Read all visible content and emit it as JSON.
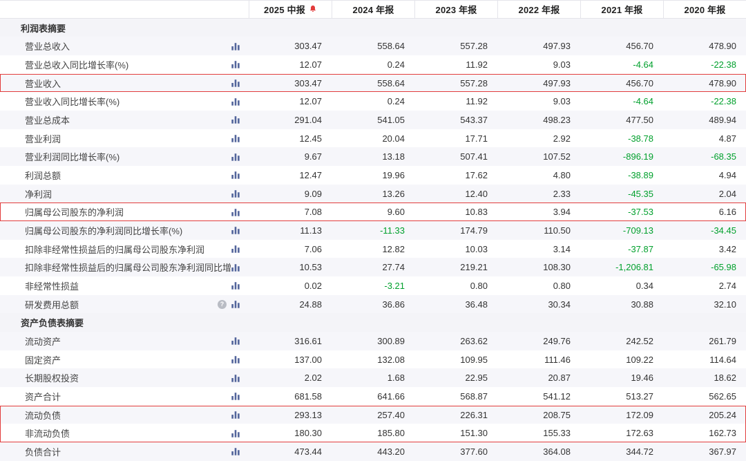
{
  "colors": {
    "negative_value": "#00a02c",
    "highlight_border": "#e23c3c",
    "row_stripe": "#f6f6fa",
    "chart_icon": "#53659b",
    "bell_icon": "#e23c3c"
  },
  "columns": [
    {
      "label": "2025 中报",
      "alert_bell": true
    },
    {
      "label": "2024 年报",
      "alert_bell": false
    },
    {
      "label": "2023 年报",
      "alert_bell": false
    },
    {
      "label": "2022 年报",
      "alert_bell": false
    },
    {
      "label": "2021 年报",
      "alert_bell": false
    },
    {
      "label": "2020 年报",
      "alert_bell": false
    }
  ],
  "sections": [
    {
      "title": "利润表摘要",
      "rows": [
        {
          "label": "营业总收入",
          "values": [
            "303.47",
            "558.64",
            "557.28",
            "497.93",
            "456.70",
            "478.90"
          ]
        },
        {
          "label": "营业总收入同比增长率(%)",
          "values": [
            "12.07",
            "0.24",
            "11.92",
            "9.03",
            "-4.64",
            "-22.38"
          ]
        },
        {
          "label": "营业收入",
          "highlight": "hl-single",
          "values": [
            "303.47",
            "558.64",
            "557.28",
            "497.93",
            "456.70",
            "478.90"
          ]
        },
        {
          "label": "营业收入同比增长率(%)",
          "values": [
            "12.07",
            "0.24",
            "11.92",
            "9.03",
            "-4.64",
            "-22.38"
          ]
        },
        {
          "label": "营业总成本",
          "values": [
            "291.04",
            "541.05",
            "543.37",
            "498.23",
            "477.50",
            "489.94"
          ]
        },
        {
          "label": "营业利润",
          "values": [
            "12.45",
            "20.04",
            "17.71",
            "2.92",
            "-38.78",
            "4.87"
          ]
        },
        {
          "label": "营业利润同比增长率(%)",
          "values": [
            "9.67",
            "13.18",
            "507.41",
            "107.52",
            "-896.19",
            "-68.35"
          ]
        },
        {
          "label": "利润总额",
          "values": [
            "12.47",
            "19.96",
            "17.62",
            "4.80",
            "-38.89",
            "4.94"
          ]
        },
        {
          "label": "净利润",
          "values": [
            "9.09",
            "13.26",
            "12.40",
            "2.33",
            "-45.35",
            "2.04"
          ]
        },
        {
          "label": "归属母公司股东的净利润",
          "highlight": "hl-single",
          "values": [
            "7.08",
            "9.60",
            "10.83",
            "3.94",
            "-37.53",
            "6.16"
          ]
        },
        {
          "label": "归属母公司股东的净利润同比增长率(%)",
          "values": [
            "11.13",
            "-11.33",
            "174.79",
            "110.50",
            "-709.13",
            "-34.45"
          ]
        },
        {
          "label": "扣除非经常性损益后的归属母公司股东净利润",
          "values": [
            "7.06",
            "12.82",
            "10.03",
            "3.14",
            "-37.87",
            "3.42"
          ]
        },
        {
          "label": "扣除非经常性损益后的归属母公司股东净利润同比增...",
          "values": [
            "10.53",
            "27.74",
            "219.21",
            "108.30",
            "-1,206.81",
            "-65.98"
          ]
        },
        {
          "label": "非经常性损益",
          "values": [
            "0.02",
            "-3.21",
            "0.80",
            "0.80",
            "0.34",
            "2.74"
          ]
        },
        {
          "label": "研发费用总额",
          "help": true,
          "values": [
            "24.88",
            "36.86",
            "36.48",
            "30.34",
            "30.88",
            "32.10"
          ]
        }
      ]
    },
    {
      "title": "资产负债表摘要",
      "rows": [
        {
          "label": "流动资产",
          "values": [
            "316.61",
            "300.89",
            "263.62",
            "249.76",
            "242.52",
            "261.79"
          ]
        },
        {
          "label": "固定资产",
          "values": [
            "137.00",
            "132.08",
            "109.95",
            "111.46",
            "109.22",
            "114.64"
          ]
        },
        {
          "label": "长期股权投资",
          "values": [
            "2.02",
            "1.68",
            "22.95",
            "20.87",
            "19.46",
            "18.62"
          ]
        },
        {
          "label": "资产合计",
          "values": [
            "681.58",
            "641.66",
            "568.87",
            "541.12",
            "513.27",
            "562.65"
          ]
        },
        {
          "label": "流动负债",
          "highlight": "hl-start",
          "values": [
            "293.13",
            "257.40",
            "226.31",
            "208.75",
            "172.09",
            "205.24"
          ]
        },
        {
          "label": "非流动负债",
          "highlight": "hl-end",
          "values": [
            "180.30",
            "185.80",
            "151.30",
            "155.33",
            "172.63",
            "162.73"
          ]
        },
        {
          "label": "负债合计",
          "values": [
            "473.44",
            "443.20",
            "377.60",
            "364.08",
            "344.72",
            "367.97"
          ]
        }
      ]
    }
  ]
}
